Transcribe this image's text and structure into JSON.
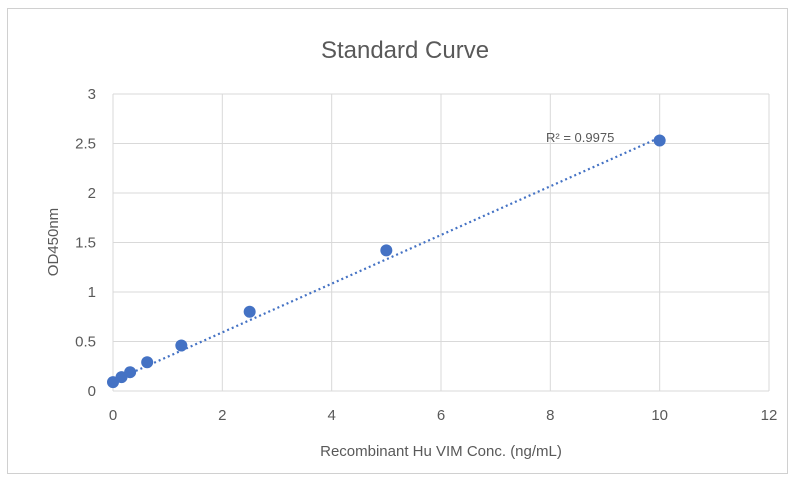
{
  "chart_data": {
    "type": "scatter",
    "title": "Standard Curve",
    "xlabel": "Recombinant Hu VIM Conc. (ng/mL)",
    "ylabel": "OD450nm",
    "xlim": [
      0,
      12
    ],
    "ylim": [
      0,
      3
    ],
    "xticks": [
      0,
      2,
      4,
      6,
      8,
      10,
      12
    ],
    "yticks": [
      0,
      0.5,
      1,
      1.5,
      2,
      2.5,
      3
    ],
    "ytick_labels": [
      "0",
      "0.5",
      "1",
      "1.5",
      "2",
      "2.5",
      "3"
    ],
    "grid": true,
    "series": [
      {
        "x": [
          0,
          0.156,
          0.313,
          0.625,
          1.25,
          2.5,
          5,
          10
        ],
        "y": [
          0.09,
          0.14,
          0.19,
          0.29,
          0.46,
          0.8,
          1.42,
          2.53
        ]
      }
    ],
    "trendline": {
      "type": "linear",
      "style": "dotted",
      "x": [
        0,
        10
      ],
      "y": [
        0.1,
        2.56
      ]
    },
    "annotation": "R² = 0.9975",
    "colors": {
      "marker": "#4472c4",
      "trendline": "#4472c4",
      "grid": "#d9d9d9",
      "text": "#595959"
    }
  }
}
